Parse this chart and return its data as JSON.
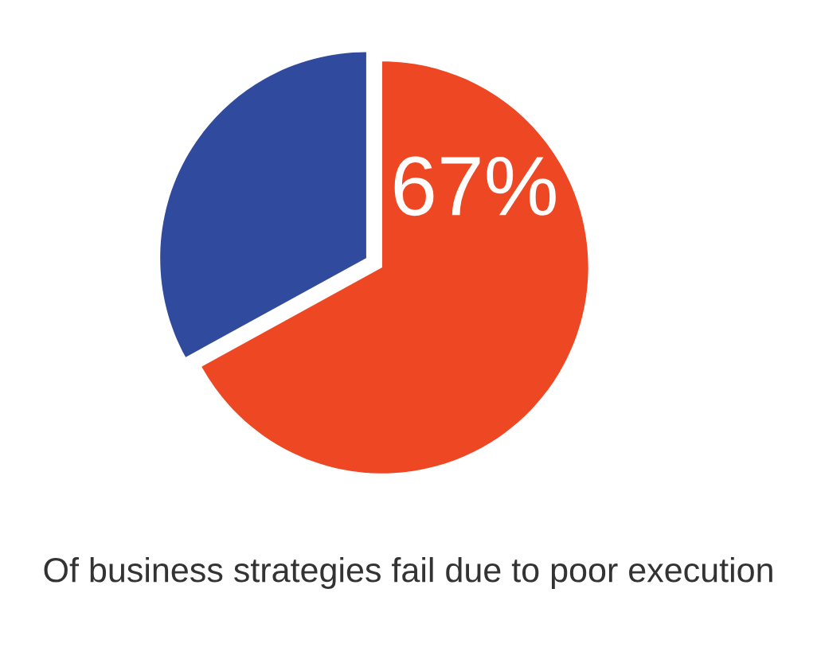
{
  "chart_data": {
    "type": "pie",
    "title": "Of business strategies fail due to poor execution",
    "categories": [
      null,
      null
    ],
    "values": [
      67,
      33
    ],
    "colors": [
      "#ee4723",
      "#304a9e"
    ],
    "value_labels": [
      "67%",
      null
    ]
  }
}
